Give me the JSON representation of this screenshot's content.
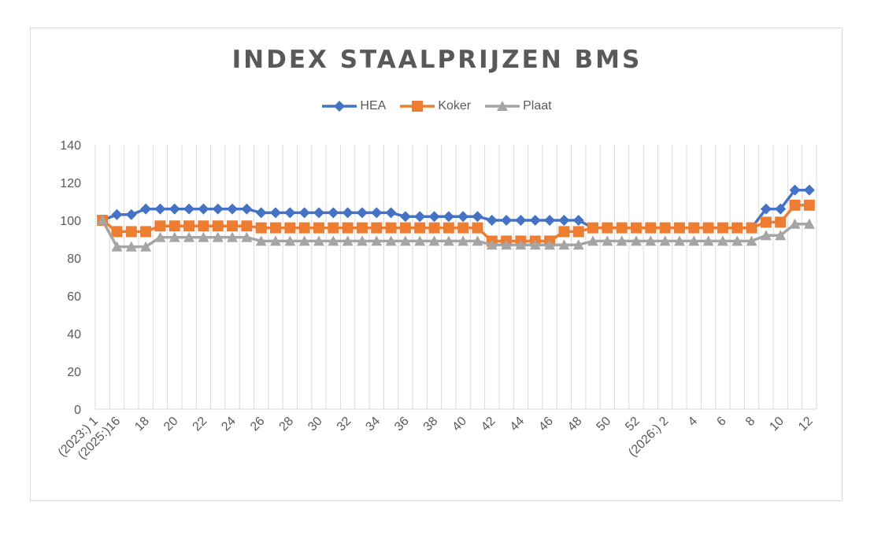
{
  "chart_data": {
    "type": "line",
    "title": "INDEX STAALPRIJZEN BMS",
    "categories": [
      "(2023:) 1",
      "(2025:)16",
      "17",
      "18",
      "19",
      "20",
      "21",
      "22",
      "23",
      "24",
      "25",
      "26",
      "27",
      "28",
      "29",
      "30",
      "31",
      "32",
      "33",
      "34",
      "35",
      "36",
      "37",
      "38",
      "39",
      "40",
      "41",
      "42",
      "43",
      "44",
      "45",
      "46",
      "47",
      "48",
      "49",
      "50",
      "51",
      "52",
      "(2026:) 1",
      "(2026:) 2",
      "3",
      "4",
      "5",
      "6",
      "7",
      "8",
      "9",
      "10",
      "11",
      "12"
    ],
    "tick_labels": [
      "(2023:) 1",
      "(2025:)16",
      "18",
      "20",
      "22",
      "24",
      "26",
      "28",
      "30",
      "32",
      "34",
      "36",
      "38",
      "40",
      "42",
      "44",
      "46",
      "48",
      "50",
      "52",
      "(2026:) 2",
      "4",
      "6",
      "8",
      "10",
      "12"
    ],
    "series": [
      {
        "name": "HEA",
        "color": "#4472c4",
        "marker": "diamond",
        "values": [
          100,
          103,
          103,
          106,
          106,
          106,
          106,
          106,
          106,
          106,
          106,
          104,
          104,
          104,
          104,
          104,
          104,
          104,
          104,
          104,
          104,
          102,
          102,
          102,
          102,
          102,
          102,
          100,
          100,
          100,
          100,
          100,
          100,
          100,
          96,
          96,
          96,
          96,
          96,
          96,
          96,
          96,
          96,
          96,
          96,
          96,
          106,
          106,
          116,
          116
        ]
      },
      {
        "name": "Koker",
        "color": "#ed7d31",
        "marker": "square",
        "values": [
          100,
          94,
          94,
          94,
          97,
          97,
          97,
          97,
          97,
          97,
          97,
          96,
          96,
          96,
          96,
          96,
          96,
          96,
          96,
          96,
          96,
          96,
          96,
          96,
          96,
          96,
          96,
          89,
          89,
          89,
          89,
          89,
          94,
          94,
          96,
          96,
          96,
          96,
          96,
          96,
          96,
          96,
          96,
          96,
          96,
          96,
          99,
          99,
          108,
          108
        ]
      },
      {
        "name": "Plaat",
        "color": "#a5a5a5",
        "marker": "triangle",
        "values": [
          100,
          86,
          86,
          86,
          91,
          91,
          91,
          91,
          91,
          91,
          91,
          89,
          89,
          89,
          89,
          89,
          89,
          89,
          89,
          89,
          89,
          89,
          89,
          89,
          89,
          89,
          89,
          87,
          87,
          87,
          87,
          87,
          87,
          87,
          89,
          89,
          89,
          89,
          89,
          89,
          89,
          89,
          89,
          89,
          89,
          89,
          92,
          92,
          98,
          98
        ]
      }
    ],
    "yticks": [
      0,
      20,
      40,
      60,
      80,
      100,
      120,
      140
    ],
    "ylim": [
      0,
      140
    ],
    "grid": "vertical",
    "legend": "top"
  }
}
